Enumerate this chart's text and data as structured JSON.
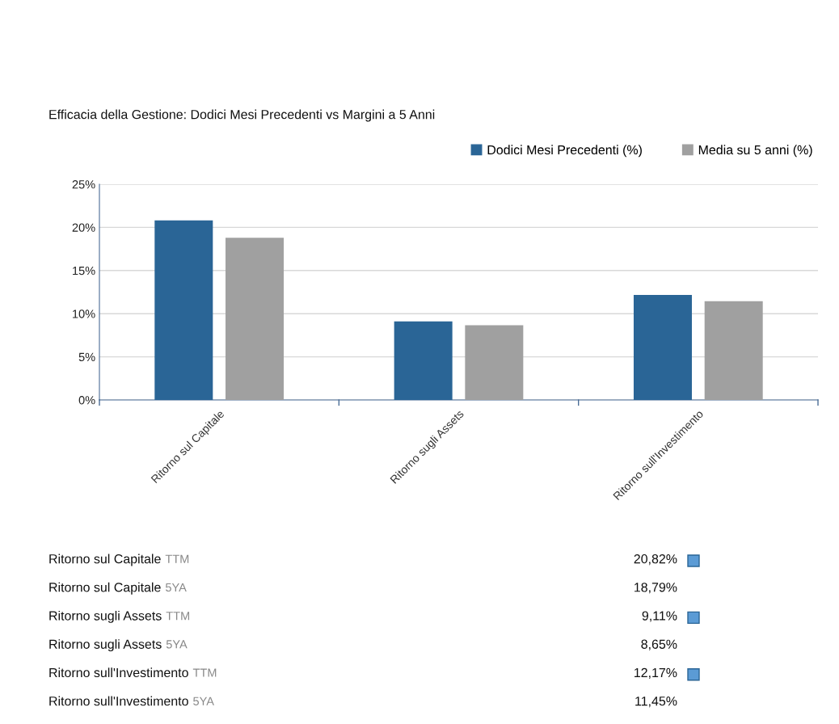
{
  "chart_data": {
    "type": "bar",
    "title": "Efficacia della Gestione: Dodici Mesi Precedenti vs Margini a 5 Anni",
    "categories": [
      "Ritorno sul Capitale",
      "Ritorno sugli Assets",
      "Ritorno sull'Investimento"
    ],
    "series": [
      {
        "name": "Dodici Mesi Precedenti (%)",
        "color": "#2a6596",
        "values": [
          20.82,
          9.11,
          12.17
        ]
      },
      {
        "name": "Media su 5 anni (%)",
        "color": "#a0a0a0",
        "values": [
          18.79,
          8.65,
          11.45
        ]
      }
    ],
    "annotations": [
      "Ritorno sul Capitale TTM",
      "20,82%",
      "Ritorno sul Capitale 5YA",
      "18,79%",
      "Ritorno sugli Assets TTM",
      "9,11%",
      "Ritorno sugli Assets 5YA",
      "8,65%",
      "Ritorno sull'Investimento TTM",
      "12,17%",
      "Ritorno sull'Investimento 5YA",
      "11,45%"
    ],
    "ylim": [
      0,
      25
    ],
    "yticks": [
      {
        "value": 0,
        "label": "0%"
      },
      {
        "value": 5,
        "label": "5%"
      },
      {
        "value": 10,
        "label": "10%"
      },
      {
        "value": 15,
        "label": "15%"
      },
      {
        "value": 20,
        "label": "20%"
      },
      {
        "value": 25,
        "label": "25%"
      }
    ],
    "grid": "y",
    "legend": "top right"
  }
}
